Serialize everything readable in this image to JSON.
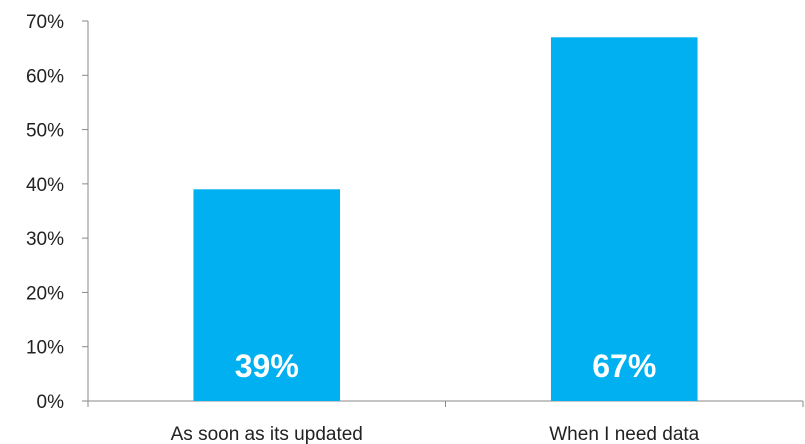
{
  "chart_data": {
    "type": "bar",
    "categories": [
      "As soon as its updated",
      "When I need data"
    ],
    "values": [
      39,
      67
    ],
    "data_labels": [
      "39%",
      "67%"
    ],
    "y_ticks": [
      "0%",
      "10%",
      "20%",
      "30%",
      "40%",
      "50%",
      "60%",
      "70%"
    ],
    "ylim": [
      0,
      70
    ],
    "y_step": 10,
    "title": "",
    "xlabel": "",
    "ylabel": "",
    "grid": false,
    "legend": "none",
    "bar_color": "#00b0f0",
    "data_label_color": "#ffffff",
    "axis_color": "#8a8a8a"
  }
}
